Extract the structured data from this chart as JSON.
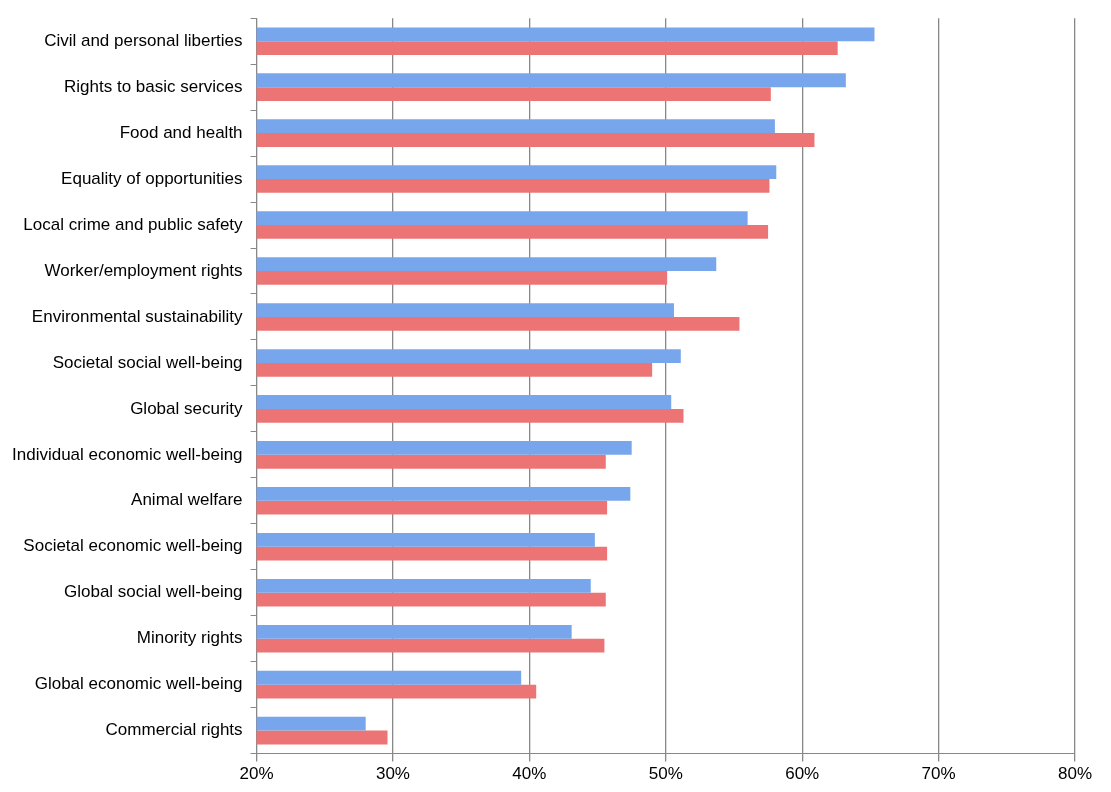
{
  "chart_data": {
    "type": "bar",
    "orientation": "horizontal",
    "categories": [
      "Civil and personal liberties",
      "Rights to basic services",
      "Food and health",
      "Equality of opportunities",
      "Local crime and public safety",
      "Worker/employment rights",
      "Environmental sustainability",
      "Societal social well-being",
      "Global security",
      "Individual economic well-being",
      "Animal welfare",
      "Societal economic well-being",
      "Global social well-being",
      "Minority rights",
      "Global economic well-being",
      "Commercial rights"
    ],
    "series": [
      {
        "color": "#78a6ec",
        "values": [
          65.3,
          63.2,
          58.0,
          58.1,
          56.0,
          53.7,
          50.6,
          51.1,
          50.4,
          47.5,
          47.4,
          44.8,
          44.5,
          43.1,
          39.4,
          28.0
        ]
      },
      {
        "color": "#ec7474",
        "values": [
          62.6,
          57.7,
          60.9,
          57.6,
          57.5,
          50.1,
          55.4,
          49.0,
          51.3,
          45.6,
          45.7,
          45.7,
          45.6,
          45.5,
          40.5,
          29.6
        ]
      }
    ],
    "xlim": [
      20,
      80
    ],
    "xticks": [
      {
        "value": 20,
        "label": "20%"
      },
      {
        "value": 30,
        "label": "30%"
      },
      {
        "value": 40,
        "label": "40%"
      },
      {
        "value": 50,
        "label": "50%"
      },
      {
        "value": 60,
        "label": "60%"
      },
      {
        "value": 70,
        "label": "70%"
      },
      {
        "value": 80,
        "label": "80%"
      }
    ],
    "grid": "x",
    "legend": false
  }
}
